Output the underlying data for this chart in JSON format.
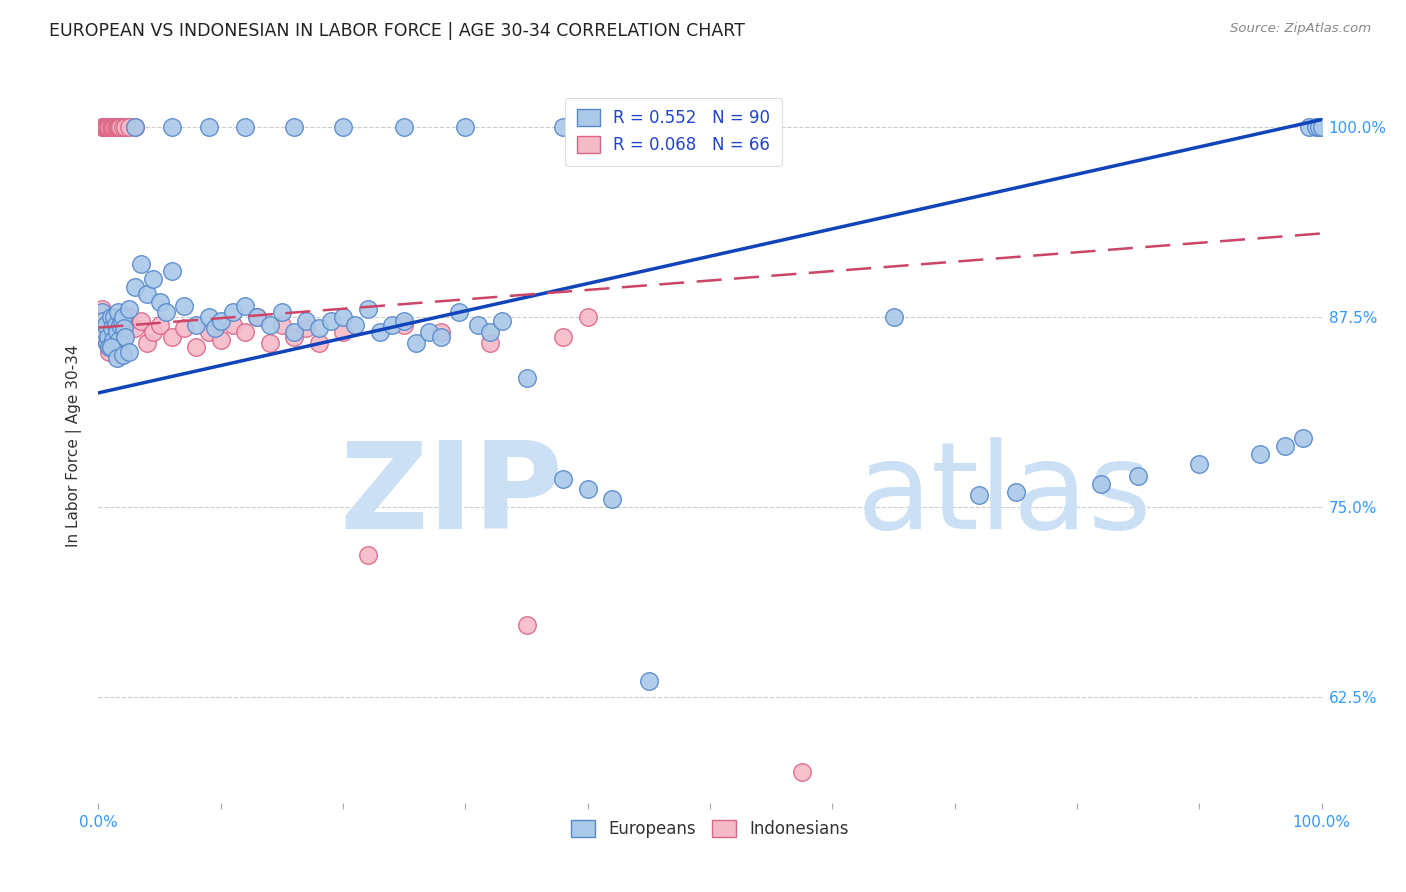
{
  "title": "EUROPEAN VS INDONESIAN IN LABOR FORCE | AGE 30-34 CORRELATION CHART",
  "source": "Source: ZipAtlas.com",
  "ylabel": "In Labor Force | Age 30-34",
  "ytick_labels": [
    "62.5%",
    "75.0%",
    "87.5%",
    "100.0%"
  ],
  "ytick_values": [
    0.625,
    0.75,
    0.875,
    1.0
  ],
  "xlim": [
    0.0,
    1.0
  ],
  "ylim": [
    0.555,
    1.025
  ],
  "european_color": "#aac8e8",
  "european_edge": "#5588cc",
  "indonesian_color": "#f5bac8",
  "indonesian_edge": "#dd6688",
  "line_blue": "#1144bb",
  "line_pink": "#cc4466",
  "legend_blue_label": "R = 0.552   N = 90",
  "legend_pink_label": "R = 0.068   N = 66",
  "legend_europeans": "Europeans",
  "legend_indonesians": "Indonesians",
  "eu_line_x": [
    0.0,
    1.0
  ],
  "eu_line_y": [
    0.825,
    1.005
  ],
  "id_line_x": [
    0.0,
    1.0
  ],
  "id_line_y": [
    0.868,
    0.93
  ],
  "european_x": [
    0.003,
    0.004,
    0.005,
    0.006,
    0.007,
    0.008,
    0.009,
    0.01,
    0.011,
    0.012,
    0.013,
    0.014,
    0.015,
    0.016,
    0.017,
    0.018,
    0.019,
    0.02,
    0.021,
    0.022,
    0.025,
    0.03,
    0.035,
    0.04,
    0.045,
    0.05,
    0.055,
    0.06,
    0.07,
    0.08,
    0.09,
    0.095,
    0.1,
    0.11,
    0.12,
    0.13,
    0.14,
    0.15,
    0.16,
    0.17,
    0.18,
    0.19,
    0.2,
    0.21,
    0.22,
    0.23,
    0.24,
    0.25,
    0.26,
    0.27,
    0.28,
    0.295,
    0.31,
    0.32,
    0.33,
    0.35,
    0.38,
    0.4,
    0.42,
    0.45,
    0.03,
    0.06,
    0.09,
    0.12,
    0.16,
    0.2,
    0.25,
    0.3,
    0.38,
    0.42,
    0.46,
    0.5,
    0.53,
    0.65,
    0.72,
    0.75,
    0.82,
    0.85,
    0.9,
    0.95,
    0.97,
    0.985,
    0.99,
    0.995,
    0.998,
    1.0,
    0.01,
    0.015,
    0.02,
    0.025
  ],
  "european_y": [
    0.878,
    0.872,
    0.865,
    0.87,
    0.858,
    0.862,
    0.855,
    0.875,
    0.868,
    0.86,
    0.875,
    0.87,
    0.865,
    0.878,
    0.86,
    0.87,
    0.872,
    0.875,
    0.868,
    0.862,
    0.88,
    0.895,
    0.91,
    0.89,
    0.9,
    0.885,
    0.878,
    0.905,
    0.882,
    0.87,
    0.875,
    0.868,
    0.872,
    0.878,
    0.882,
    0.875,
    0.87,
    0.878,
    0.865,
    0.872,
    0.868,
    0.872,
    0.875,
    0.87,
    0.88,
    0.865,
    0.87,
    0.872,
    0.858,
    0.865,
    0.862,
    0.878,
    0.87,
    0.865,
    0.872,
    0.835,
    0.768,
    0.762,
    0.755,
    0.635,
    1.0,
    1.0,
    1.0,
    1.0,
    1.0,
    1.0,
    1.0,
    1.0,
    1.0,
    1.0,
    1.0,
    1.0,
    1.0,
    0.875,
    0.758,
    0.76,
    0.765,
    0.77,
    0.778,
    0.785,
    0.79,
    0.795,
    1.0,
    1.0,
    1.0,
    1.0,
    0.855,
    0.848,
    0.85,
    0.852
  ],
  "indonesian_x": [
    0.003,
    0.004,
    0.005,
    0.006,
    0.007,
    0.008,
    0.009,
    0.01,
    0.011,
    0.012,
    0.013,
    0.014,
    0.015,
    0.016,
    0.017,
    0.018,
    0.02,
    0.022,
    0.025,
    0.03,
    0.035,
    0.04,
    0.045,
    0.05,
    0.06,
    0.07,
    0.08,
    0.09,
    0.1,
    0.11,
    0.12,
    0.13,
    0.14,
    0.15,
    0.16,
    0.17,
    0.18,
    0.2,
    0.22,
    0.25,
    0.28,
    0.32,
    0.35,
    0.38,
    0.4,
    0.003,
    0.004,
    0.005,
    0.006,
    0.007,
    0.008,
    0.009,
    0.01,
    0.011,
    0.012,
    0.013,
    0.014,
    0.015,
    0.016,
    0.017,
    0.018,
    0.02,
    0.022,
    0.025,
    0.03,
    0.575
  ],
  "indonesian_y": [
    0.88,
    0.872,
    0.865,
    0.87,
    0.858,
    0.862,
    0.852,
    0.875,
    0.868,
    0.855,
    0.872,
    0.865,
    0.858,
    0.875,
    0.86,
    0.868,
    0.862,
    0.87,
    0.875,
    0.868,
    0.872,
    0.858,
    0.865,
    0.87,
    0.862,
    0.868,
    0.855,
    0.865,
    0.86,
    0.87,
    0.865,
    0.875,
    0.858,
    0.87,
    0.862,
    0.868,
    0.858,
    0.865,
    0.718,
    0.87,
    0.865,
    0.858,
    0.672,
    0.862,
    0.875,
    1.0,
    1.0,
    1.0,
    1.0,
    1.0,
    1.0,
    1.0,
    1.0,
    1.0,
    1.0,
    1.0,
    1.0,
    1.0,
    1.0,
    1.0,
    1.0,
    1.0,
    1.0,
    1.0,
    1.0,
    0.575
  ]
}
